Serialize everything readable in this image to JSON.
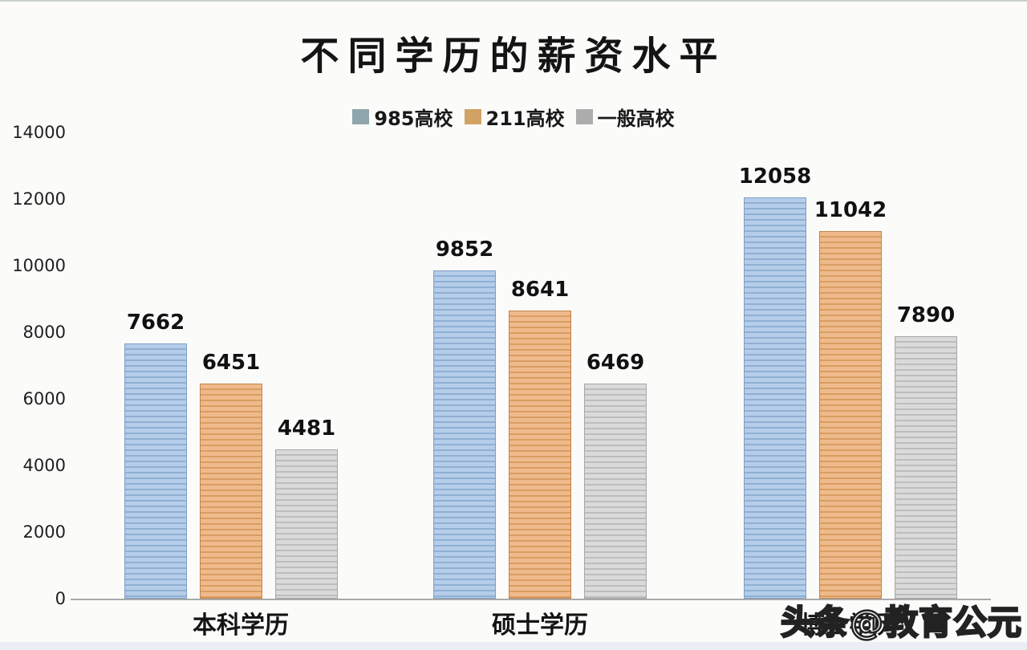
{
  "watermark": "头条@教育公元",
  "colors": {
    "background": "#fbfbfa",
    "axis_line": "#a9a9a9",
    "text": "#141414"
  },
  "legend": [
    {
      "label": "985高校",
      "color": "#8ea5ab"
    },
    {
      "label": "211高校",
      "color": "#d2a264"
    },
    {
      "label": "一般高校",
      "color": "#acacac"
    }
  ],
  "chart_data": {
    "type": "bar",
    "title": "不同学历的薪资水平",
    "categories": [
      "本科学历",
      "硕士学历",
      "博士学历"
    ],
    "series": [
      {
        "name": "985高校",
        "values": [
          7662,
          9852,
          12058
        ],
        "fill": "#b5cde9",
        "stripe": "#90afd3",
        "border": "#7e9fc6"
      },
      {
        "name": "211高校",
        "values": [
          6451,
          8641,
          11042
        ],
        "fill": "#efba8b",
        "stripe": "#d99d62",
        "border": "#c4844b"
      },
      {
        "name": "一般高校",
        "values": [
          4481,
          6469,
          7890
        ],
        "fill": "#dadada",
        "stripe": "#bdbdbd",
        "border": "#a6a6a6"
      }
    ],
    "xlabel": "",
    "ylabel": "",
    "ylim": [
      0,
      14000
    ],
    "yticks": [
      0,
      2000,
      4000,
      6000,
      8000,
      10000,
      12000,
      14000
    ],
    "grid": false,
    "legend_position": "top",
    "data_labels": true
  }
}
